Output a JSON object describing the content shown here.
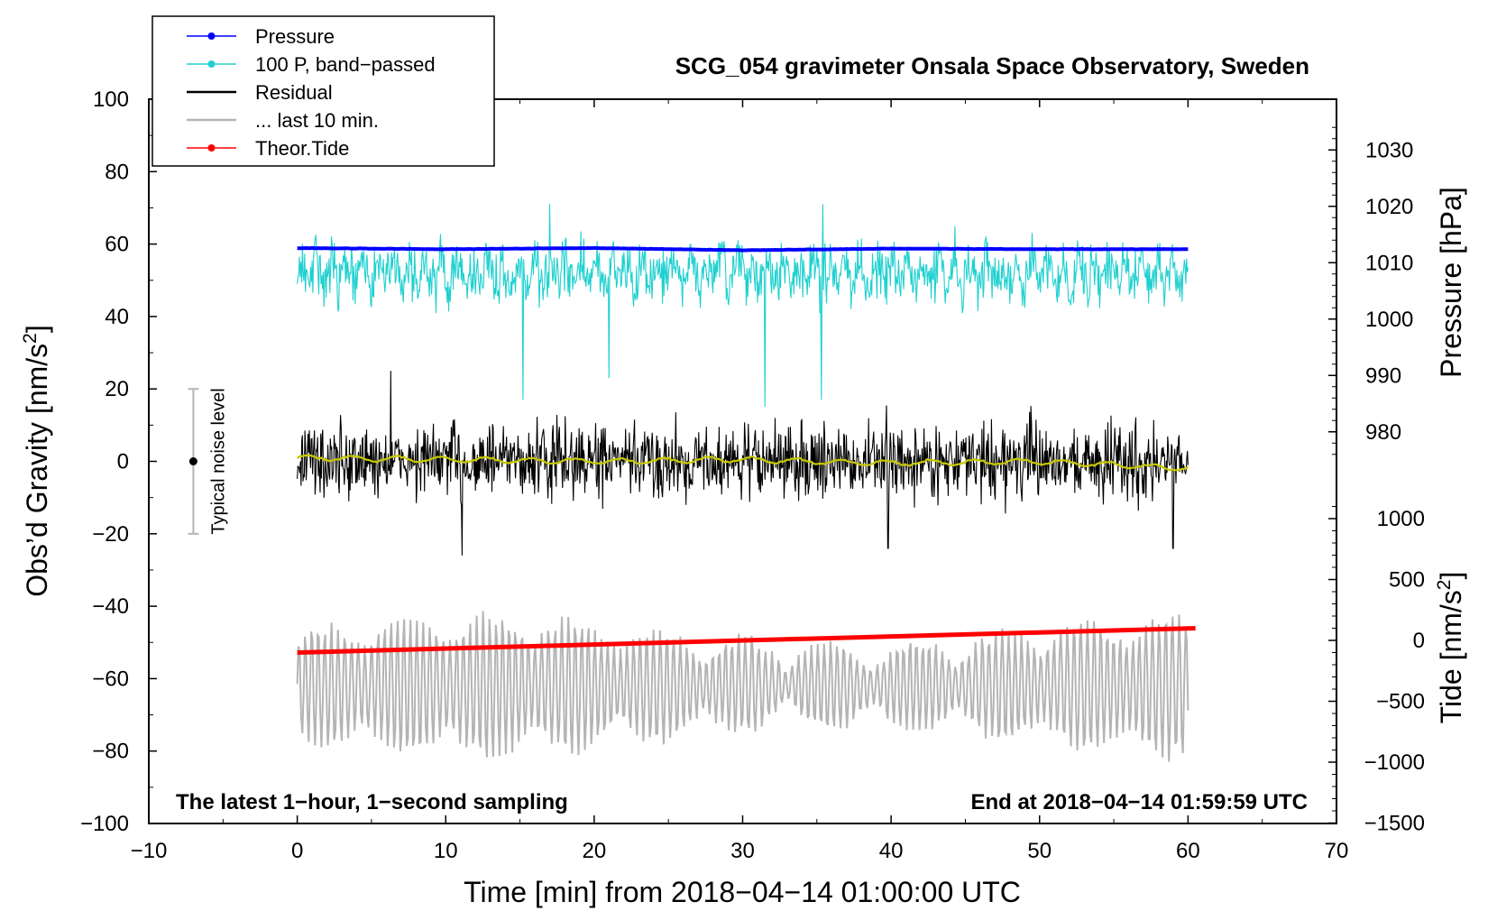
{
  "chart_data": {
    "type": "line",
    "title": "SCG_054 gravimeter Onsala Space Observatory, Sweden",
    "xlabel": "Time [min] from 2018−04−14 01:00:00 UTC",
    "ylabel_left_main": "Obs’d Gravity [nm/s",
    "ylabel_left_sup": "2",
    "ylabel_left_end": "]",
    "ylabel_right_pressure": "Pressure [hPa]",
    "ylabel_right_tide_main": "Tide [nm/s",
    "ylabel_right_tide_sup": "2",
    "ylabel_right_tide_end": "]",
    "xlim": [
      -10,
      70
    ],
    "ylim_left": [
      -100,
      100
    ],
    "pressure_axis_range": [
      975,
      1035
    ],
    "tide_axis_range": [
      -1500,
      1500
    ],
    "x_ticks": [
      "−10",
      "0",
      "10",
      "20",
      "30",
      "40",
      "50",
      "60",
      "70"
    ],
    "x_tick_values": [
      -10,
      0,
      10,
      20,
      30,
      40,
      50,
      60,
      70
    ],
    "y_ticks_left": [
      "100",
      "80",
      "60",
      "40",
      "20",
      "0",
      "−20",
      "−40",
      "−60",
      "−80",
      "−100"
    ],
    "y_tick_values_left": [
      100,
      80,
      60,
      40,
      20,
      0,
      -20,
      -40,
      -60,
      -80,
      -100
    ],
    "pressure_ticks": [
      "1030",
      "1020",
      "1010",
      "1000",
      "990",
      "980"
    ],
    "pressure_tick_values": [
      1030,
      1020,
      1010,
      1000,
      990,
      980
    ],
    "tide_ticks": [
      "1000",
      "500",
      "0",
      "−500",
      "−1000",
      "−1500"
    ],
    "tide_tick_values": [
      1000,
      500,
      0,
      -500,
      -1000,
      -1500
    ],
    "legend": [
      {
        "label": "Pressure",
        "color": "#0000ff",
        "marker": true
      },
      {
        "label": "100 P, band−passed",
        "color": "#20d0d0",
        "marker": true
      },
      {
        "label": "Residual",
        "color": "#000000",
        "marker": false
      },
      {
        "label": "... last 10 min.",
        "color": "#b4b4b4",
        "marker": false
      },
      {
        "label": "Theor.Tide",
        "color": "#ff0000",
        "marker": true
      }
    ],
    "noise_bar": {
      "label": "Typical noise level",
      "x": -7,
      "center": 0,
      "low": -20,
      "high": 20
    },
    "annotation_left": "The latest 1−hour, 1−second sampling",
    "annotation_right": "End at 2018−04−14 01:59:59 UTC",
    "series": [
      {
        "name": "Pressure",
        "axis": "pressure",
        "color": "#0000ff",
        "x": [
          0,
          10,
          20,
          30,
          40,
          50,
          60
        ],
        "values": [
          1012.6,
          1012.4,
          1012.6,
          1012.2,
          1012.5,
          1012.4,
          1012.4
        ]
      },
      {
        "name": "100 P, band−passed",
        "axis": "left",
        "color": "#20d0d0",
        "center": 52,
        "amplitude": 9,
        "spikes": [
          [
            15.2,
            17
          ],
          [
            17,
            71
          ],
          [
            21,
            23
          ],
          [
            31.5,
            15
          ],
          [
            35.3,
            17
          ],
          [
            35.4,
            71
          ]
        ]
      },
      {
        "name": "Residual",
        "axis": "left",
        "color": "#000000",
        "center": 0,
        "amplitude": 15,
        "extremes": [
          [
            6.3,
            25
          ],
          [
            11.1,
            -26
          ],
          [
            39.8,
            -24
          ],
          [
            59,
            -24
          ]
        ]
      },
      {
        "name": "Smoothed residual",
        "axis": "left",
        "color": "#c8c800",
        "x": [
          0,
          10,
          20,
          30,
          40,
          50,
          60
        ],
        "values": [
          1,
          0.5,
          0,
          0.5,
          -0.5,
          0,
          -2
        ]
      },
      {
        "name": "... last 10 min.",
        "axis": "left",
        "color": "#b4b4b4",
        "center": -62,
        "amplitude": 16
      },
      {
        "name": "Theor.Tide",
        "axis": "tide",
        "color": "#ff0000",
        "x": [
          0,
          60.5
        ],
        "values": [
          -100,
          100
        ]
      }
    ]
  }
}
